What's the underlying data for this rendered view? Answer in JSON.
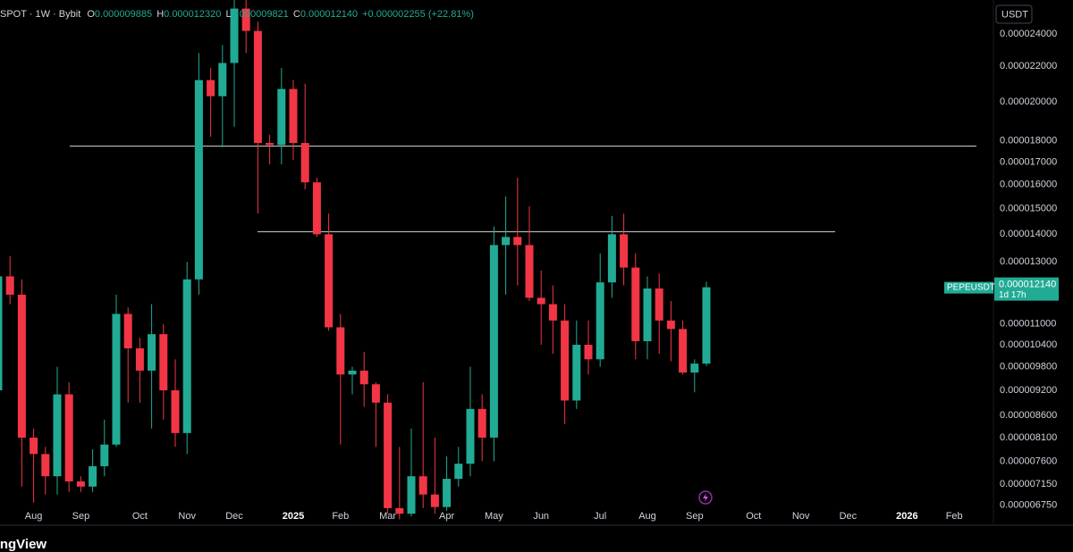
{
  "chart_data": {
    "type": "candlestick",
    "header": {
      "symbol": "SPOT · 1W · Bybit",
      "o_label": "O",
      "o": "0.000009885",
      "h_label": "H",
      "h": "0.000012320",
      "l_label": "L",
      "l": "0.000009821",
      "c_label": "C",
      "c": "0.000012140",
      "change": "+0.000002255 (+22.81%)"
    },
    "currency": "USDT",
    "last_price": {
      "symbol": "PEPEUSDT",
      "label": "0.000012140",
      "countdown": "1d 17h"
    },
    "footer": "TradingView",
    "log_scale": true,
    "up_color": "#22ab94",
    "down_color": "#f23645",
    "categories": [
      null,
      null,
      null,
      "Aug",
      null,
      null,
      null,
      "Sep",
      null,
      null,
      null,
      null,
      "Oct",
      null,
      null,
      null,
      "Nov",
      null,
      null,
      null,
      "Dec",
      null,
      null,
      null,
      null,
      "2025",
      null,
      null,
      null,
      "Feb",
      null,
      null,
      null,
      "Mar",
      null,
      null,
      null,
      null,
      "Apr",
      null,
      null,
      null,
      "May",
      null,
      null,
      null,
      "Jun",
      null,
      null,
      null,
      null,
      "Jul",
      null,
      null,
      null,
      "Aug",
      null,
      null,
      null,
      "Sep",
      null,
      null,
      null,
      null,
      "Oct",
      null,
      null,
      null,
      "Nov",
      null,
      null,
      null,
      "Dec",
      null,
      null,
      null,
      null,
      "2026",
      null,
      null,
      null,
      "Feb",
      null,
      null
    ],
    "open": [
      9.2e-06,
      1.25e-05,
      1.19e-05,
      8.1e-06,
      7.75e-06,
      7.3e-06,
      9.1e-06,
      7.2e-06,
      7.1e-06,
      7.5e-06,
      7.95e-06,
      1.13e-05,
      1.03e-05,
      9.7e-06,
      1.07e-05,
      9.2e-06,
      8.2e-06,
      1.24e-05,
      2.12e-05,
      2.03e-05,
      2.22e-05,
      2.57e-05,
      2.42e-05,
      1.79e-05,
      1.78e-05,
      2.07e-05,
      1.79e-05,
      1.61e-05,
      1.4e-05,
      1.09e-05,
      9.6e-06,
      9.7e-06,
      9.35e-06,
      8.9e-06,
      6.7e-06,
      6.6e-06,
      7.3e-06,
      6.95e-06,
      6.72e-06,
      7.25e-06,
      7.55e-06,
      8.75e-06,
      8.1e-06,
      1.36e-05,
      1.39e-05,
      1.36e-05,
      1.18e-05,
      1.16e-05,
      1.11e-05,
      8.95e-06,
      1.04e-05,
      1e-05,
      1.23e-05,
      1.4e-05,
      1.28e-05,
      1.05e-05,
      1.21e-05,
      1.11e-05,
      1.085e-05,
      9.65e-06,
      9.885e-06,
      null,
      null,
      null,
      null,
      null,
      null,
      null,
      null,
      null,
      null,
      null,
      null,
      null,
      null,
      null,
      null,
      null,
      null,
      null,
      null,
      null,
      null,
      null
    ],
    "high": [
      1.25e-05,
      1.32e-05,
      1.24e-05,
      8.3e-06,
      7.9e-06,
      9.8e-06,
      9.4e-06,
      7.3e-06,
      7.85e-06,
      8.5e-06,
      1.19e-05,
      1.15e-05,
      1.06e-05,
      1.16e-05,
      1.1e-05,
      1e-05,
      1.3e-05,
      2.28e-05,
      2.19e-05,
      2.33e-05,
      2.63e-05,
      2.68e-05,
      2.48e-05,
      1.83e-05,
      2.19e-05,
      2.12e-05,
      2.1e-05,
      1.63e-05,
      1.48e-05,
      1.13e-05,
      9.8e-06,
      1.02e-05,
      9.4e-06,
      9.1e-06,
      7.9e-06,
      8.3e-06,
      9.4e-06,
      8.1e-06,
      7.7e-06,
      7.9e-06,
      9.8e-06,
      9.1e-06,
      1.43e-05,
      1.55e-05,
      1.63e-05,
      1.51e-05,
      1.27e-05,
      1.22e-05,
      1.16e-05,
      1.11e-05,
      1.11e-05,
      1.33e-05,
      1.47e-05,
      1.48e-05,
      1.33e-05,
      1.25e-05,
      1.26e-05,
      1.17e-05,
      1.11e-05,
      1e-05,
      1.232e-05,
      null,
      null,
      null,
      null,
      null,
      null,
      null,
      null,
      null,
      null,
      null,
      null,
      null,
      null,
      null,
      null,
      null,
      null,
      null,
      null,
      null,
      null,
      null
    ],
    "low": [
      9e-06,
      1.16e-05,
      7.1e-06,
      6.8e-06,
      6.95e-06,
      6.95e-06,
      7e-06,
      7e-06,
      7e-06,
      7.3e-06,
      7.9e-06,
      8.9e-06,
      8.9e-06,
      8.3e-06,
      8.5e-06,
      7.9e-06,
      7.75e-06,
      1.19e-05,
      1.82e-05,
      1.77e-05,
      1.87e-05,
      2.28e-05,
      1.48e-05,
      1.69e-05,
      1.69e-05,
      1.71e-05,
      1.58e-05,
      1.39e-05,
      1.08e-05,
      7.95e-06,
      9.1e-06,
      8.8e-06,
      7.9e-06,
      6.6e-06,
      6.5e-06,
      6.55e-06,
      6.7e-06,
      6.6e-06,
      6.65e-06,
      7.1e-06,
      7.3e-06,
      7.6e-06,
      7.6e-06,
      1.19e-05,
      1.22e-05,
      1.17e-05,
      1.04e-05,
      1.015e-05,
      8.4e-06,
      8.75e-06,
      9.6e-06,
      9.8e-06,
      1.18e-05,
      1.22e-05,
      1e-05,
      1e-05,
      1.015e-05,
      9.95e-06,
      9.6e-06,
      9.15e-06,
      9.821e-06,
      null,
      null,
      null,
      null,
      null,
      null,
      null,
      null,
      null,
      null,
      null,
      null,
      null,
      null,
      null,
      null,
      null,
      null,
      null,
      null,
      null,
      null,
      null
    ],
    "close": [
      1.25e-05,
      1.19e-05,
      8.1e-06,
      7.75e-06,
      7.3e-06,
      9.1e-06,
      7.2e-06,
      7.1e-06,
      7.5e-06,
      7.95e-06,
      1.13e-05,
      1.03e-05,
      9.7e-06,
      1.07e-05,
      9.2e-06,
      8.2e-06,
      1.24e-05,
      2.12e-05,
      2.03e-05,
      2.22e-05,
      2.57e-05,
      2.42e-05,
      1.79e-05,
      1.78e-05,
      2.07e-05,
      1.79e-05,
      1.61e-05,
      1.4e-05,
      1.09e-05,
      9.6e-06,
      9.7e-06,
      9.35e-06,
      8.9e-06,
      6.7e-06,
      6.6e-06,
      7.3e-06,
      6.95e-06,
      6.72e-06,
      7.25e-06,
      7.55e-06,
      8.75e-06,
      8.1e-06,
      1.36e-05,
      1.39e-05,
      1.36e-05,
      1.18e-05,
      1.16e-05,
      1.11e-05,
      8.95e-06,
      1.04e-05,
      1e-05,
      1.23e-05,
      1.4e-05,
      1.28e-05,
      1.05e-05,
      1.21e-05,
      1.11e-05,
      1.085e-05,
      9.65e-06,
      9.885e-06,
      1.214e-05,
      null,
      null,
      null,
      null,
      null,
      null,
      null,
      null,
      null,
      null,
      null,
      null,
      null,
      null,
      null,
      null,
      null,
      null,
      null,
      null,
      null,
      null,
      null
    ],
    "levels": [
      1.775e-05,
      1.41e-05
    ],
    "ylim": [
      6.43e-06,
      2.63e-05
    ],
    "yticks": [
      {
        "value": 2.4e-05,
        "label": "0.000024000"
      },
      {
        "value": 2.2e-05,
        "label": "0.000022000"
      },
      {
        "value": 2e-05,
        "label": "0.000020000"
      },
      {
        "value": 1.8e-05,
        "label": "0.000018000"
      },
      {
        "value": 1.7e-05,
        "label": "0.000017000"
      },
      {
        "value": 1.6e-05,
        "label": "0.000016000"
      },
      {
        "value": 1.5e-05,
        "label": "0.000015000"
      },
      {
        "value": 1.4e-05,
        "label": "0.000014000"
      },
      {
        "value": 1.3e-05,
        "label": "0.000013000"
      },
      {
        "value": 1.1e-05,
        "label": "0.000011000"
      },
      {
        "value": 1.04e-05,
        "label": "0.000010400"
      },
      {
        "value": 9.8e-06,
        "label": "0.000009800"
      },
      {
        "value": 9.2e-06,
        "label": "0.000009200"
      },
      {
        "value": 8.6e-06,
        "label": "0.000008600"
      },
      {
        "value": 8.1e-06,
        "label": "0.000008100"
      },
      {
        "value": 7.6e-06,
        "label": "0.000007600"
      },
      {
        "value": 7.15e-06,
        "label": "0.000007150"
      },
      {
        "value": 6.75e-06,
        "label": "0.000006750"
      }
    ]
  }
}
